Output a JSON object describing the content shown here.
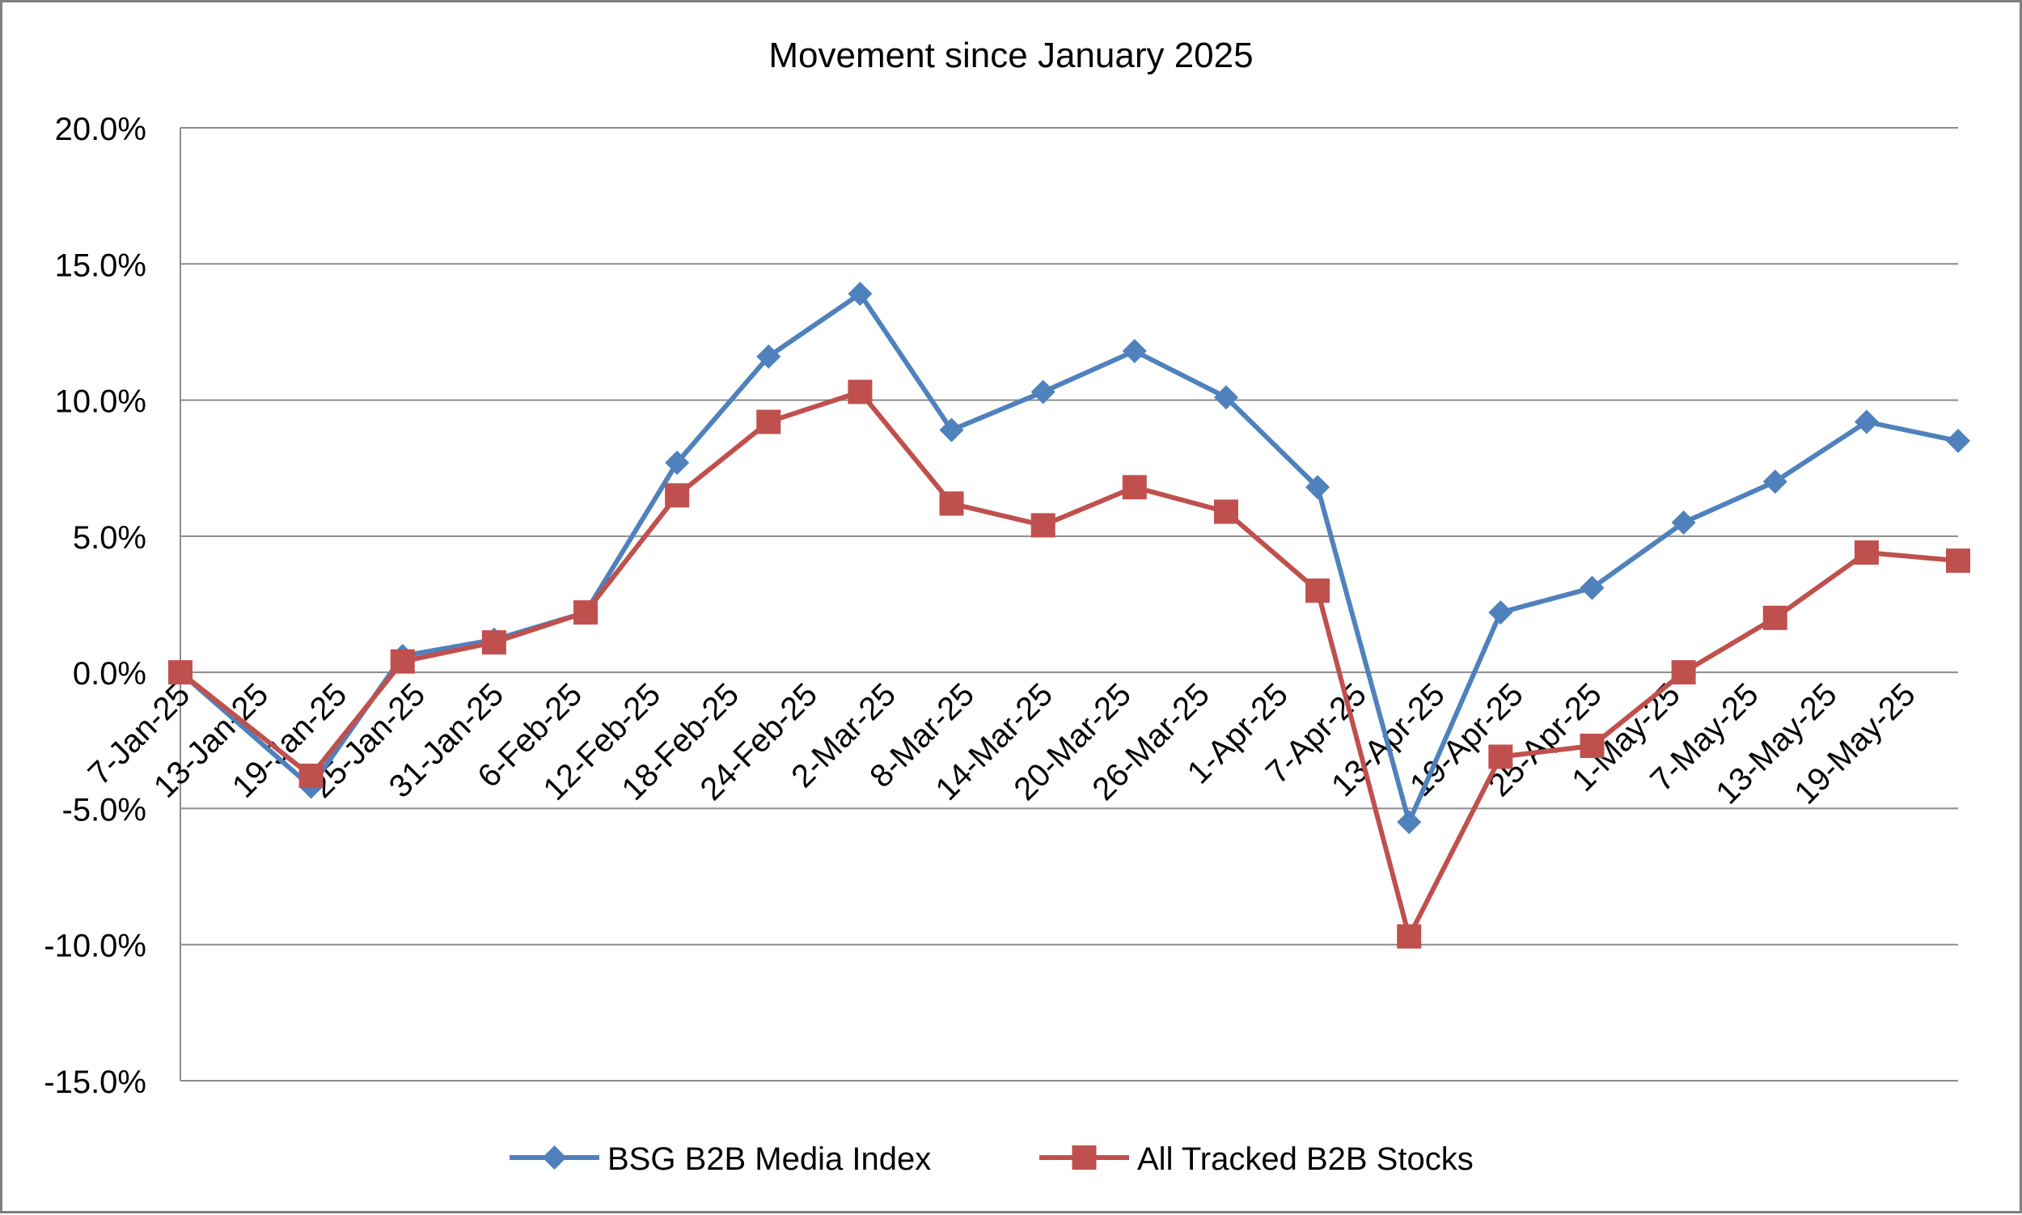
{
  "chart_data": {
    "type": "line",
    "title": "Movement since January 2025",
    "xlabel": "",
    "ylabel": "",
    "ylim": [
      -0.15,
      0.2
    ],
    "yticks": [
      -0.15,
      -0.1,
      -0.05,
      0.0,
      0.05,
      0.1,
      0.15,
      0.2
    ],
    "ytick_labels": [
      "-15.0%",
      "-10.0%",
      "-5.0%",
      "0.0%",
      "5.0%",
      "10.0%",
      "15.0%",
      "20.0%"
    ],
    "categories": [
      "7-Jan-25",
      "13-Jan-25",
      "19-Jan-25",
      "25-Jan-25",
      "31-Jan-25",
      "6-Feb-25",
      "12-Feb-25",
      "18-Feb-25",
      "24-Feb-25",
      "2-Mar-25",
      "8-Mar-25",
      "14-Mar-25",
      "20-Mar-25",
      "26-Mar-25",
      "1-Apr-25",
      "7-Apr-25",
      "13-Apr-25",
      "19-Apr-25",
      "25-Apr-25",
      "1-May-25",
      "7-May-25",
      "13-May-25",
      "19-May-25"
    ],
    "x_values": [
      "7-Jan-25",
      "17-Jan-25",
      "24-Jan-25",
      "31-Jan-25",
      "7-Feb-25",
      "14-Feb-25",
      "21-Feb-25",
      "28-Feb-25",
      "7-Mar-25",
      "14-Mar-25",
      "21-Mar-25",
      "28-Mar-25",
      "4-Apr-25",
      "11-Apr-25",
      "18-Apr-25",
      "25-Apr-25",
      "2-May-25",
      "9-May-25",
      "16-May-25",
      "23-May-25"
    ],
    "series": [
      {
        "name": "BSG B2B Media Index",
        "color": "#4f81bd",
        "marker": "diamond",
        "values": [
          0.0,
          -0.042,
          0.006,
          0.012,
          0.022,
          0.077,
          0.116,
          0.139,
          0.089,
          0.103,
          0.118,
          0.101,
          0.068,
          -0.055,
          0.022,
          0.031,
          0.055,
          0.07,
          0.092,
          0.085
        ]
      },
      {
        "name": "All Tracked B2B Stocks",
        "color": "#c0504d",
        "marker": "square",
        "values": [
          0.0,
          -0.038,
          0.004,
          0.011,
          0.022,
          0.065,
          0.092,
          0.103,
          0.062,
          0.054,
          0.068,
          0.059,
          0.03,
          -0.097,
          -0.031,
          -0.027,
          0.0,
          0.02,
          0.044,
          0.041
        ]
      }
    ],
    "grid": true,
    "legend_position": "bottom"
  }
}
